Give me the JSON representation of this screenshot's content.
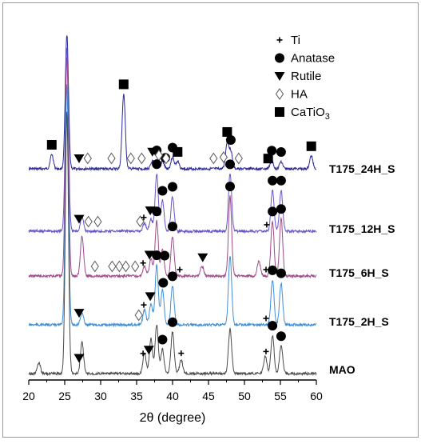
{
  "chart_data": {
    "type": "line",
    "title": "",
    "xlabel": "2θ (degree)",
    "ylabel": "",
    "xlim": [
      20,
      60
    ],
    "xticks": [
      "20",
      "25",
      "30",
      "35",
      "40",
      "45",
      "50",
      "55",
      "60"
    ],
    "grid": false,
    "legend": {
      "placement": "top-right",
      "entries": [
        {
          "symbol": "plus",
          "label": "Ti"
        },
        {
          "symbol": "circle",
          "label": "Anatase"
        },
        {
          "symbol": "triangle-down",
          "label": "Rutile"
        },
        {
          "symbol": "diamond-open",
          "label": "HA"
        },
        {
          "symbol": "square",
          "label": "CaTiO3",
          "sub": "3"
        }
      ]
    },
    "series": [
      {
        "name": "T175_24H_S",
        "color": "#2a2a9a",
        "peaks": [
          [
            23.2,
            0.1
          ],
          [
            25.3,
            0.93
          ],
          [
            33.2,
            0.52
          ],
          [
            37.2,
            0.05
          ],
          [
            37.8,
            0.06
          ],
          [
            38.6,
            0.05
          ],
          [
            40.0,
            0.08
          ],
          [
            40.7,
            0.05
          ],
          [
            47.6,
            0.18
          ],
          [
            48.1,
            0.12
          ],
          [
            53.8,
            0.06
          ],
          [
            55.1,
            0.05
          ],
          [
            59.3,
            0.09
          ]
        ],
        "markers": {
          "square": [
            23.2,
            33.2,
            40.7,
            47.6,
            53.3,
            59.3
          ],
          "circle": [
            37.8,
            39.0,
            40.0,
            48.1,
            53.8,
            55.1
          ],
          "triangle-down": [
            27.0,
            37.2
          ],
          "diamond-open": [
            28.2,
            31.5,
            34.2,
            35.7,
            38.1,
            39.1,
            45.7,
            47.1,
            49.2
          ]
        }
      },
      {
        "name": "T175_12H_S",
        "color": "#6655c8",
        "peaks": [
          [
            25.3,
            0.9
          ],
          [
            27.4,
            0.07
          ],
          [
            36.1,
            0.04
          ],
          [
            37.0,
            0.06
          ],
          [
            37.8,
            0.28
          ],
          [
            38.6,
            0.15
          ],
          [
            40.0,
            0.17
          ],
          [
            48.0,
            0.28
          ],
          [
            53.9,
            0.2
          ],
          [
            55.1,
            0.2
          ]
        ],
        "markers": {
          "circle": [
            37.8,
            38.6,
            40.0,
            48.0,
            53.9,
            55.1
          ],
          "triangle-down": [
            27.0,
            36.9
          ],
          "diamond-open": [
            28.3,
            29.6,
            35.5
          ],
          "plus": [
            36.0,
            53.1
          ]
        }
      },
      {
        "name": "T175_6H_S",
        "color": "#a04a8a",
        "peaks": [
          [
            25.3,
            0.88
          ],
          [
            27.4,
            0.16
          ],
          [
            36.1,
            0.04
          ],
          [
            37.0,
            0.07
          ],
          [
            37.8,
            0.22
          ],
          [
            38.6,
            0.11
          ],
          [
            40.0,
            0.16
          ],
          [
            44.1,
            0.04
          ],
          [
            48.0,
            0.32
          ],
          [
            52.0,
            0.06
          ],
          [
            53.9,
            0.22
          ],
          [
            55.1,
            0.23
          ]
        ],
        "markers": {
          "circle": [
            37.8,
            38.9,
            40.0,
            48.0,
            53.9,
            55.1
          ],
          "triangle-down": [
            36.8,
            44.2
          ],
          "diamond-open": [
            29.2,
            31.6,
            32.6,
            33.5,
            34.8
          ],
          "plus": [
            35.9,
            41.0,
            53.0
          ]
        }
      },
      {
        "name": "T175_2H_S",
        "color": "#3f8fd6",
        "peaks": [
          [
            25.3,
            0.8
          ],
          [
            27.4,
            0.04
          ],
          [
            36.1,
            0.05
          ],
          [
            37.0,
            0.07
          ],
          [
            37.8,
            0.2
          ],
          [
            38.6,
            0.12
          ],
          [
            40.0,
            0.13
          ],
          [
            48.0,
            0.23
          ],
          [
            53.9,
            0.15
          ],
          [
            55.1,
            0.14
          ]
        ],
        "markers": {
          "circle": [
            37.8,
            38.7,
            40.0,
            53.9,
            55.1
          ],
          "triangle-down": [
            27.0,
            36.9
          ],
          "diamond-open": [
            35.3
          ],
          "plus": [
            36.0,
            53.0
          ]
        }
      },
      {
        "name": "MAO",
        "color": "#4a4a4a",
        "peaks": [
          [
            21.4,
            0.03
          ],
          [
            25.3,
            0.75
          ],
          [
            27.4,
            0.09
          ],
          [
            36.1,
            0.06
          ],
          [
            37.0,
            0.1
          ],
          [
            37.8,
            0.14
          ],
          [
            38.6,
            0.07
          ],
          [
            40.0,
            0.12
          ],
          [
            41.2,
            0.04
          ],
          [
            48.0,
            0.13
          ],
          [
            52.9,
            0.05
          ],
          [
            53.9,
            0.11
          ],
          [
            55.1,
            0.08
          ]
        ],
        "markers": {
          "circle": [
            38.6,
            40.0,
            53.9,
            55.1
          ],
          "triangle-down": [
            27.0,
            36.7
          ],
          "plus": [
            35.9,
            41.2,
            53.0
          ]
        }
      }
    ]
  }
}
